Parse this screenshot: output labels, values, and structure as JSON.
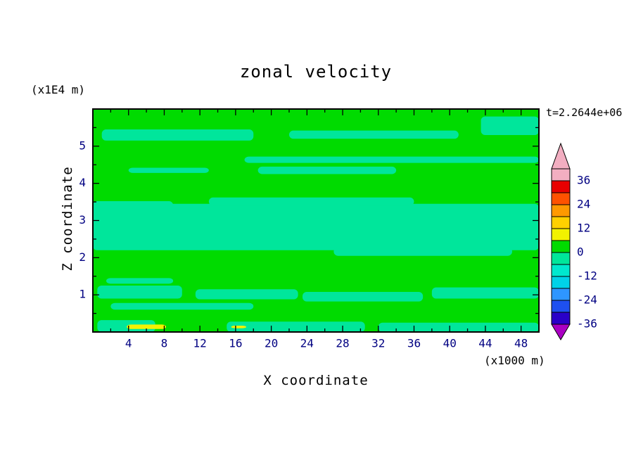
{
  "title": "zonal velocity",
  "time_label": "t=2.2644e+06",
  "axes": {
    "x_label": "X coordinate",
    "x_units": "(x1000 m)",
    "y_label": "Z coordinate",
    "y_units": "(x1E4 m)"
  },
  "colors": {
    "numeral_text": "#000082",
    "plain_text": "#000000",
    "frame": "#000000"
  },
  "chart_data": {
    "type": "heatmap",
    "title": "zonal velocity",
    "time_annotation": "t=2.2644e+06",
    "xlabel": "X coordinate",
    "x_units": "(x1000 m)",
    "ylabel": "Z coordinate",
    "y_units": "(x1E4 m)",
    "x_range": [
      0,
      50
    ],
    "z_range": [
      0,
      6
    ],
    "x_major_ticks": [
      4,
      8,
      12,
      16,
      20,
      24,
      28,
      32,
      36,
      40,
      44,
      48
    ],
    "x_minor_step": 2,
    "y_major_ticks": [
      1,
      2,
      3,
      4,
      5
    ],
    "y_minor_step": 0.5,
    "grid": false,
    "legend_position": "right-colorbar",
    "field_description": "Filled contour section of zonal velocity: green background (level 0 to 6) with horizontal turquoise bands (level -6 to 0), a wide turquoise layer near z=2.2-3.5, thin turquoise streaks near z=1, z=4.3-4.7 and z=5.2-5.8, turquoise patches along the bottom edge, and tiny yellow patches (level 6 to 12) near the bottom-left surface.",
    "background_level": "0 to 6",
    "colorbar": {
      "labels": [
        36,
        24,
        12,
        0,
        -12,
        -24,
        -36
      ],
      "label_step": 12,
      "segment_step": 6,
      "segments": [
        {
          "min": 36,
          "max": 42,
          "color": "#F2AEC1"
        },
        {
          "min": 30,
          "max": 36,
          "color": "#E80000"
        },
        {
          "min": 24,
          "max": 30,
          "color": "#FF5200"
        },
        {
          "min": 18,
          "max": 24,
          "color": "#FF9900"
        },
        {
          "min": 12,
          "max": 18,
          "color": "#FFD000"
        },
        {
          "min": 6,
          "max": 12,
          "color": "#F2F200"
        },
        {
          "min": 0,
          "max": 6,
          "color": "#00DB00"
        },
        {
          "min": -6,
          "max": 0,
          "color": "#00E69B"
        },
        {
          "min": -12,
          "max": -6,
          "color": "#00E8CE"
        },
        {
          "min": -18,
          "max": -12,
          "color": "#00D2E8"
        },
        {
          "min": -24,
          "max": -18,
          "color": "#2E96FF"
        },
        {
          "min": -30,
          "max": -24,
          "color": "#1E50F0"
        },
        {
          "min": -36,
          "max": -30,
          "color": "#2A00C8"
        }
      ],
      "arrow_above_color": "#F2AEC1",
      "arrow_below_color": "#AA00C3"
    },
    "regions": [
      {
        "level": "-6 to 0",
        "color": "#00E69B",
        "x": [
          1,
          18
        ],
        "z": [
          5.15,
          5.45
        ]
      },
      {
        "level": "-6 to 0",
        "color": "#00E69B",
        "x": [
          22,
          41
        ],
        "z": [
          5.2,
          5.42
        ]
      },
      {
        "level": "-6 to 0",
        "color": "#00E69B",
        "x": [
          43.5,
          50
        ],
        "z": [
          5.3,
          5.8
        ]
      },
      {
        "level": "-6 to 0",
        "color": "#00E69B",
        "x": [
          17,
          50
        ],
        "z": [
          4.55,
          4.72
        ]
      },
      {
        "level": "-6 to 0",
        "color": "#00E69B",
        "x": [
          4,
          13
        ],
        "z": [
          4.28,
          4.42
        ]
      },
      {
        "level": "-6 to 0",
        "color": "#00E69B",
        "x": [
          18.5,
          34
        ],
        "z": [
          4.25,
          4.45
        ]
      },
      {
        "level": "-6 to 0",
        "color": "#00E69B",
        "x": [
          0,
          50
        ],
        "z": [
          2.2,
          3.45
        ]
      },
      {
        "level": "-6 to 0",
        "color": "#00E69B",
        "x": [
          13,
          36
        ],
        "z": [
          3.4,
          3.62
        ]
      },
      {
        "level": "-6 to 0",
        "color": "#00E69B",
        "x": [
          0,
          9
        ],
        "z": [
          3.3,
          3.52
        ]
      },
      {
        "level": "-6 to 0",
        "color": "#00E69B",
        "x": [
          27,
          47
        ],
        "z": [
          2.05,
          2.28
        ]
      },
      {
        "level": "-6 to 0",
        "color": "#00E69B",
        "x": [
          1.5,
          9
        ],
        "z": [
          1.3,
          1.45
        ]
      },
      {
        "level": "-6 to 0",
        "color": "#00E69B",
        "x": [
          0.5,
          10
        ],
        "z": [
          0.9,
          1.25
        ]
      },
      {
        "level": "-6 to 0",
        "color": "#00E69B",
        "x": [
          11.5,
          23
        ],
        "z": [
          0.88,
          1.15
        ]
      },
      {
        "level": "-6 to 0",
        "color": "#00E69B",
        "x": [
          23.5,
          37
        ],
        "z": [
          0.82,
          1.08
        ]
      },
      {
        "level": "-6 to 0",
        "color": "#00E69B",
        "x": [
          38,
          50
        ],
        "z": [
          0.9,
          1.2
        ]
      },
      {
        "level": "-6 to 0",
        "color": "#00E69B",
        "x": [
          2,
          18
        ],
        "z": [
          0.6,
          0.78
        ]
      },
      {
        "level": "-6 to 0",
        "color": "#00E69B",
        "x": [
          0.5,
          7
        ],
        "z": [
          0,
          0.32
        ]
      },
      {
        "level": "-6 to 0",
        "color": "#00E69B",
        "x": [
          15,
          30.5
        ],
        "z": [
          0,
          0.28
        ]
      },
      {
        "level": "-6 to 0",
        "color": "#00E69B",
        "x": [
          32,
          50
        ],
        "z": [
          0,
          0.25
        ]
      },
      {
        "level": "6 to 12",
        "color": "#F2F200",
        "x": [
          3.8,
          8.2
        ],
        "z": [
          0.08,
          0.2
        ]
      },
      {
        "level": "6 to 12",
        "color": "#F2F200",
        "x": [
          15.5,
          17.2
        ],
        "z": [
          0.1,
          0.17
        ]
      }
    ]
  }
}
